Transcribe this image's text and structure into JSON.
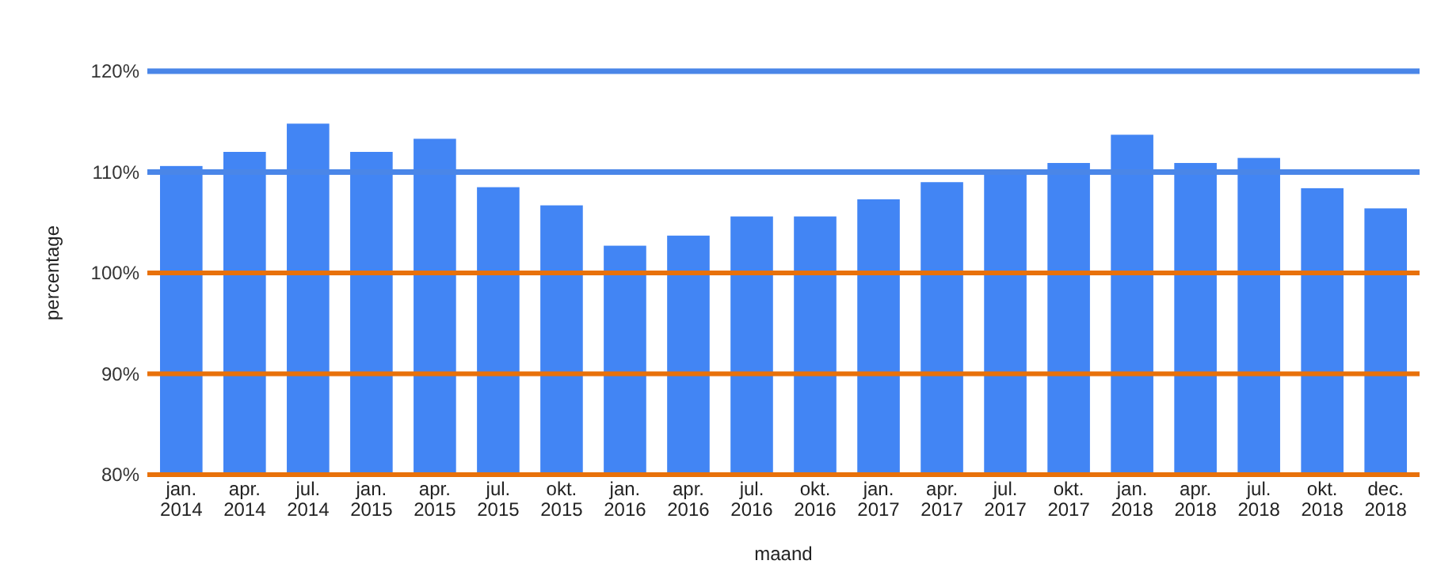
{
  "chart_data": {
    "type": "bar",
    "xlabel": "maand",
    "ylabel": "percentage",
    "categories": [
      "jan.\n2014",
      "apr.\n2014",
      "jul.\n2014",
      "jan.\n2015",
      "apr.\n2015",
      "jul.\n2015",
      "okt.\n2015",
      "jan.\n2016",
      "apr.\n2016",
      "jul.\n2016",
      "okt.\n2016",
      "jan.\n2017",
      "apr.\n2017",
      "jul.\n2017",
      "okt.\n2017",
      "jan.\n2018",
      "apr.\n2018",
      "jul.\n2018",
      "okt.\n2018",
      "dec.\n2018"
    ],
    "values": [
      110.6,
      112.0,
      114.8,
      112.0,
      113.3,
      108.5,
      106.7,
      102.7,
      103.7,
      105.6,
      105.6,
      107.3,
      109.0,
      110.1,
      110.9,
      113.7,
      110.9,
      111.4,
      108.4,
      106.4
    ],
    "color": "#4285f4",
    "ylim": [
      80,
      120
    ],
    "yticks": [
      {
        "value": 80,
        "label": "80%"
      },
      {
        "value": 90,
        "label": "90%"
      },
      {
        "value": 100,
        "label": "100%"
      },
      {
        "value": 110,
        "label": "110%"
      },
      {
        "value": 120,
        "label": "120%"
      }
    ],
    "grid": true,
    "ref_lines": [
      {
        "axis": "y",
        "value": 110,
        "color": "#4a86e8"
      },
      {
        "axis": "y",
        "value": 120,
        "color": "#4a86e8"
      }
    ]
  }
}
